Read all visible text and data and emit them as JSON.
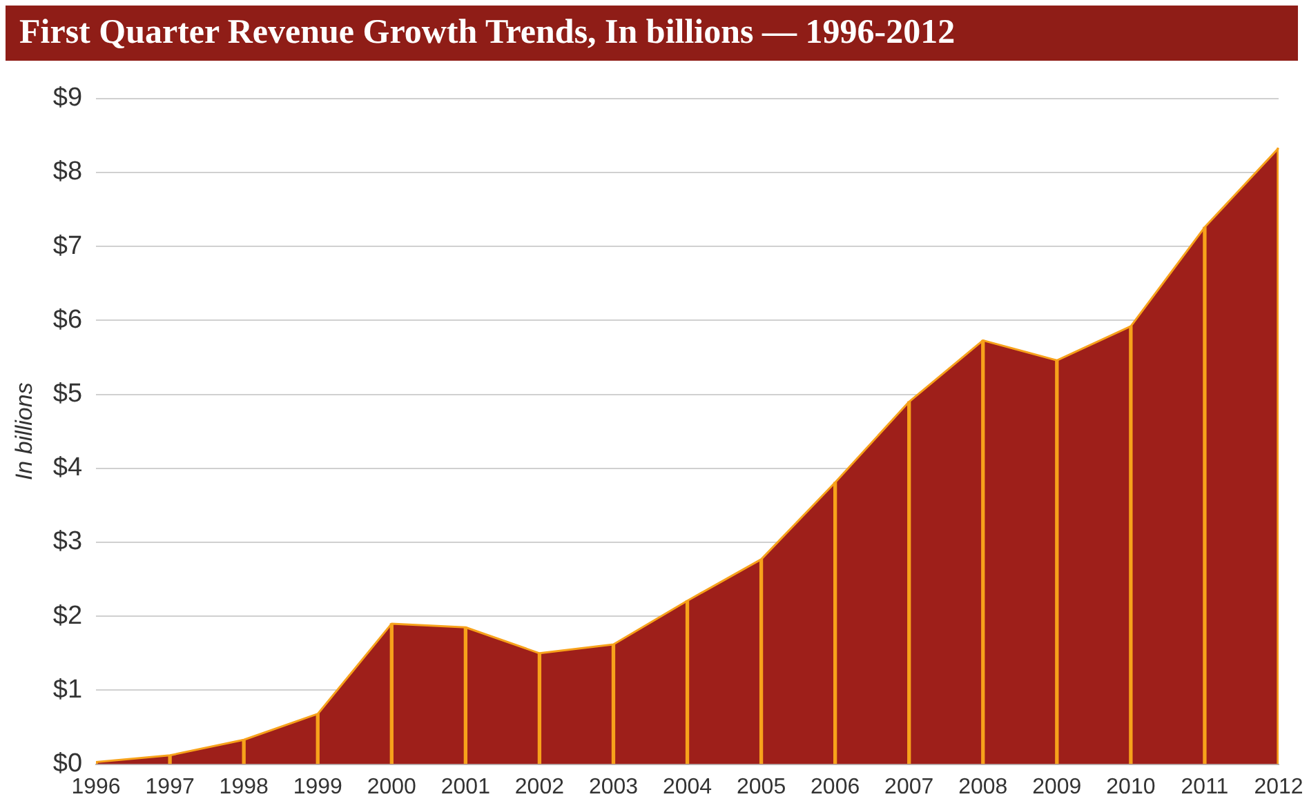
{
  "chart_data": {
    "type": "area",
    "title": "First Quarter Revenue Growth Trends, In billions — 1996-2012",
    "ylabel": "In billions",
    "categories": [
      "1996",
      "1997",
      "1998",
      "1999",
      "2000",
      "2001",
      "2002",
      "2003",
      "2004",
      "2005",
      "2006",
      "2007",
      "2008",
      "2009",
      "2010",
      "2011",
      "2012"
    ],
    "series": [
      {
        "color": "#9e1f1a",
        "values": [
          0.03,
          0.12,
          0.33,
          0.68,
          1.9,
          1.85,
          1.5,
          1.62,
          2.21,
          2.77,
          3.81,
          4.9,
          5.73,
          5.46,
          5.92,
          7.26,
          8.33
        ]
      },
      {
        "type": "bar",
        "color": "#f7a21b",
        "values": [
          0.03,
          0.12,
          0.33,
          0.68,
          1.9,
          1.85,
          1.5,
          1.62,
          2.21,
          2.77,
          3.81,
          4.9,
          5.73,
          5.46,
          5.92,
          7.26,
          8.33
        ]
      }
    ],
    "ylim": [
      0,
      9
    ],
    "yticks": [
      {
        "value": 0,
        "label": "$0"
      },
      {
        "value": 1,
        "label": "$1"
      },
      {
        "value": 2,
        "label": "$2"
      },
      {
        "value": 3,
        "label": "$3"
      },
      {
        "value": 4,
        "label": "$4"
      },
      {
        "value": 5,
        "label": "$5"
      },
      {
        "value": 6,
        "label": "$6"
      },
      {
        "value": 7,
        "label": "$7"
      },
      {
        "value": 8,
        "label": "$8"
      },
      {
        "value": 9,
        "label": "$9"
      }
    ],
    "grid": "y",
    "legend": false
  }
}
